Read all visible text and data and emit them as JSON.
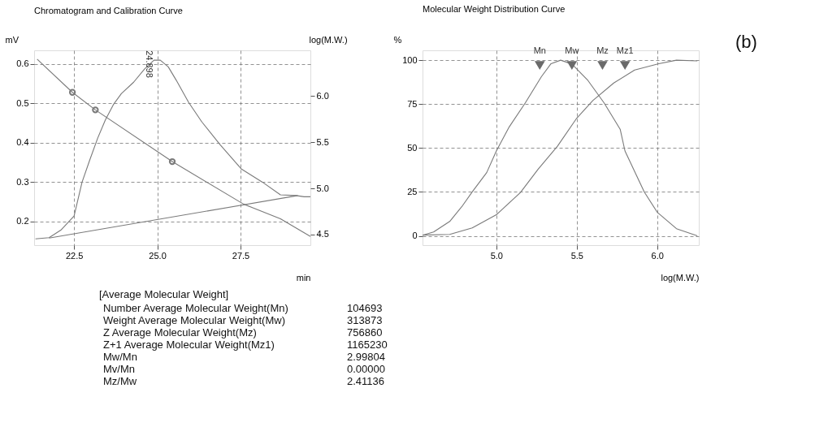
{
  "chart_data": [
    {
      "type": "line",
      "title": "Chromatogram and Calibration Curve",
      "xlabel": "min",
      "ylabel": "mV",
      "y2label": "log(M.W.)",
      "xlim": [
        21.3,
        29.6
      ],
      "ylim": [
        0.14,
        0.635
      ],
      "y2lim": [
        4.385,
        6.495
      ],
      "xticks": [
        22.5,
        {
          "value": 25,
          "label": "25.0"
        },
        27.5
      ],
      "yticks": [
        0.2,
        0.3,
        0.4,
        0.5,
        0.6
      ],
      "y2ticks": [
        4.5,
        {
          "value": 5,
          "label": "5.0"
        },
        5.5,
        {
          "value": 6,
          "label": "6.0"
        }
      ],
      "grid": true,
      "line_style": "solid",
      "series": [
        {
          "color": "#7a7a7a",
          "x": [
            21.34,
            21.75,
            22.1,
            22.5,
            22.74,
            22.97,
            23.21,
            23.44,
            23.68,
            23.92,
            24.29,
            24.62,
            24.9,
            25.09,
            25.33,
            25.57,
            25.94,
            26.34,
            26.89,
            27.52,
            28.16,
            28.7,
            29.17,
            29.41,
            29.6
          ],
          "values": [
            0.156,
            0.159,
            0.178,
            0.214,
            0.3,
            0.356,
            0.412,
            0.458,
            0.497,
            0.525,
            0.554,
            0.588,
            0.61,
            0.61,
            0.593,
            0.559,
            0.503,
            0.453,
            0.395,
            0.334,
            0.3,
            0.268,
            0.266,
            0.263,
            0.263
          ]
        },
        {
          "color": "#7a7a7a",
          "x": [
            21.75,
            29.22
          ],
          "values": [
            0.158,
            0.266
          ]
        },
        {
          "color": "#7a7a7a",
          "axis": "y2",
          "x": [
            21.39,
            22.45,
            23.14,
            25.45,
            27.59,
            28.7,
            29.6
          ],
          "values": [
            6.4,
            6.04,
            5.85,
            5.29,
            4.83,
            4.67,
            4.48
          ]
        },
        {
          "type": "scatter",
          "marker": "circle",
          "color": "#7a7a7a",
          "axis": "y2",
          "x": [
            22.45,
            23.14,
            25.45
          ],
          "values": [
            6.04,
            5.85,
            5.29
          ]
        }
      ],
      "annotations": [
        {
          "text": "24.898",
          "x": 24.898,
          "y": 0.6
        }
      ]
    },
    {
      "type": "line",
      "title": "Molecular Weight Distribution Curve",
      "xlabel": "log(M.W.)",
      "ylabel": "%",
      "xlim": [
        4.541,
        6.259
      ],
      "ylim": [
        -5.3,
        105.6
      ],
      "xticks": [
        {
          "value": 5,
          "label": "5.0"
        },
        5.5,
        {
          "value": 6,
          "label": "6.0"
        }
      ],
      "yticks": [
        0,
        25,
        50,
        75,
        100
      ],
      "grid": true,
      "line_style": "solid",
      "series": [
        {
          "color": "#7a7a7a",
          "x": [
            4.541,
            4.61,
            4.71,
            4.79,
            4.85,
            4.94,
            5.0,
            5.08,
            5.18,
            5.28,
            5.34,
            5.4,
            5.47,
            5.57,
            5.67,
            5.77,
            5.8,
            5.92,
            6.0,
            6.12,
            6.25
          ],
          "values": [
            0.4,
            2.2,
            8.2,
            17.2,
            25,
            36,
            48.3,
            62,
            75.7,
            90.6,
            98,
            100,
            97.8,
            88.4,
            75.7,
            60.7,
            48.3,
            25,
            13.5,
            4.1,
            0
          ]
        },
        {
          "color": "#7a7a7a",
          "x": [
            4.541,
            4.71,
            4.85,
            5.0,
            5.15,
            5.26,
            5.38,
            5.5,
            5.6,
            5.73,
            5.86,
            6.01,
            6.12,
            6.25
          ],
          "values": [
            0.4,
            0.8,
            4.5,
            12,
            24.7,
            38,
            51,
            67,
            77,
            87,
            94.4,
            98,
            100,
            99.6
          ]
        },
        {
          "type": "scatter",
          "marker": "triangle",
          "color": "#6a6a6a",
          "x": [
            5.27,
            5.47,
            5.66,
            5.8
          ],
          "values": [
            97,
            97,
            97,
            97
          ]
        }
      ],
      "annotations": [
        {
          "text": "Mn",
          "x": 5.27,
          "y": 100
        },
        {
          "text": "Mw",
          "x": 5.47,
          "y": 100
        },
        {
          "text": "Mz",
          "x": 5.66,
          "y": 100
        },
        {
          "text": "Mz1",
          "x": 5.8,
          "y": 100
        },
        "(b)"
      ]
    },
    {
      "type": "other",
      "title": "[Average Molecular Weight]",
      "annotations": [
        "Number Average Molecular Weight(Mn)",
        "104693",
        "Weight Average Molecular Weight(Mw)",
        "313873",
        "Z Average Molecular Weight(Mz)",
        "756860",
        "Z+1 Average Molecular Weight(Mz1)",
        "1165230",
        "Mw/Mn",
        "2.99804",
        "Mv/Mn",
        "0.00000",
        "Mz/Mw",
        "2.41136"
      ]
    }
  ]
}
